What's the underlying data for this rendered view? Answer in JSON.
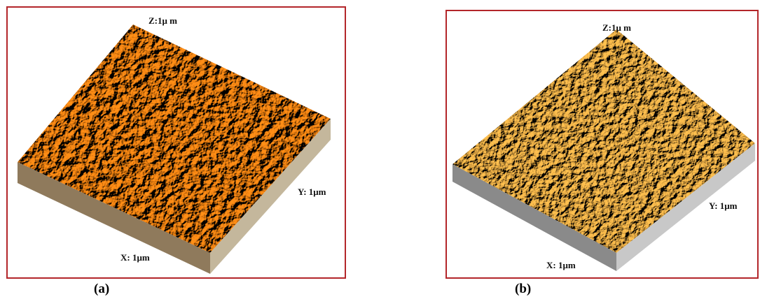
{
  "panels": [
    {
      "z_label": "Z:1μ m",
      "y_label": "Y: 1μm",
      "x_label": "X: 1μm",
      "caption": "(a)"
    },
    {
      "z_label": "Z:1μ m",
      "y_label": "Y: 1μm",
      "x_label": "X: 1μm",
      "caption": "(b)"
    }
  ]
}
